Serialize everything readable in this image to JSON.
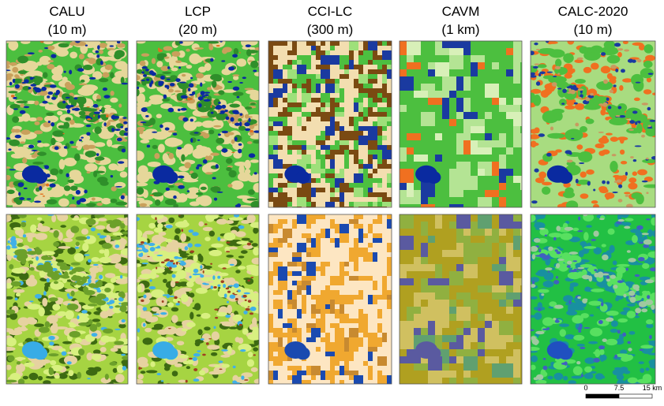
{
  "columns": [
    {
      "name": "CALU",
      "resolution": "(10 m)"
    },
    {
      "name": "LCP",
      "resolution": "(20 m)"
    },
    {
      "name": "CCI-LC",
      "resolution": "(300 m)"
    },
    {
      "name": "CAVM",
      "resolution": "(1 km)"
    },
    {
      "name": "CALC-2020",
      "resolution": "(10 m)"
    }
  ],
  "scale_bar": {
    "labels": [
      "0",
      "7.5",
      "15 km"
    ]
  }
}
